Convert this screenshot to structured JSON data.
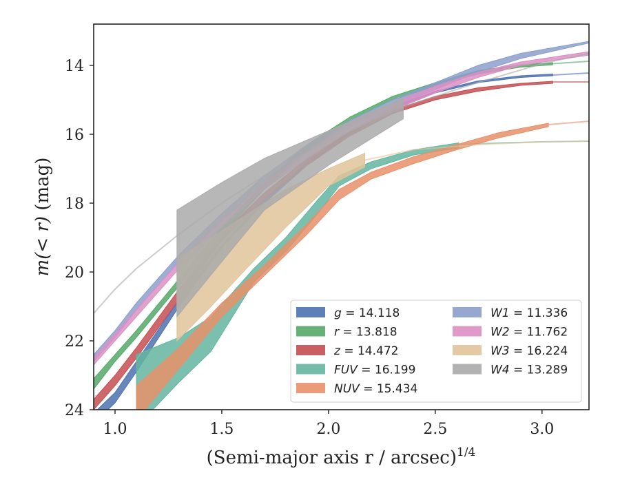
{
  "chart_data": {
    "type": "line",
    "xlabel": "(Semi-major axis r / arcsec)",
    "xlabel_sup": "1/4",
    "ylabel_main": "m(< r)",
    "ylabel_unit": "(mag)",
    "xlim": [
      0.9,
      3.22
    ],
    "ylim": [
      24,
      12.8
    ],
    "y_inverted": true,
    "grid": false,
    "legend_placement": "lower-right",
    "xticks": [
      1.0,
      1.5,
      2.0,
      2.5,
      3.0
    ],
    "xtick_labels": [
      "1.0",
      "1.5",
      "2.0",
      "2.5",
      "3.0"
    ],
    "yticks": [
      14,
      16,
      18,
      20,
      22,
      24
    ],
    "ytick_labels": [
      "14",
      "16",
      "18",
      "20",
      "22",
      "24"
    ],
    "series": [
      {
        "name": "g = 14.118",
        "sym": "g",
        "value": "14.118",
        "color": "#4c72b0",
        "x": [
          0.9,
          1.0,
          1.1,
          1.3,
          1.5,
          1.7,
          1.9,
          2.1,
          2.3,
          2.5,
          2.7,
          2.9,
          3.05
        ],
        "y_lo": [
          24.4,
          23.8,
          22.9,
          21.0,
          19.3,
          18.0,
          16.9,
          16.0,
          15.3,
          14.8,
          14.5,
          14.35,
          14.3
        ],
        "y_hi": [
          24.1,
          23.5,
          22.6,
          20.8,
          19.2,
          17.9,
          16.8,
          15.9,
          15.2,
          14.75,
          14.45,
          14.3,
          14.25
        ],
        "ext_x": [
          3.05,
          3.22
        ],
        "ext_y": [
          14.28,
          14.22
        ]
      },
      {
        "name": "r = 13.818",
        "sym": "r",
        "value": "13.818",
        "color": "#55a868",
        "x": [
          0.9,
          1.0,
          1.1,
          1.3,
          1.5,
          1.7,
          1.9,
          2.1,
          2.3,
          2.5,
          2.7,
          2.9,
          3.05
        ],
        "y_lo": [
          23.4,
          22.6,
          21.9,
          20.4,
          18.9,
          17.6,
          16.5,
          15.6,
          15.0,
          14.6,
          14.25,
          14.05,
          13.98
        ],
        "y_hi": [
          23.1,
          22.4,
          21.7,
          20.2,
          18.7,
          17.4,
          16.3,
          15.5,
          14.9,
          14.5,
          14.15,
          13.98,
          13.92
        ],
        "ext_x": [
          3.05,
          3.22
        ],
        "ext_y": [
          13.95,
          13.88
        ]
      },
      {
        "name": "z = 14.472",
        "sym": "z",
        "value": "14.472",
        "color": "#c44e52",
        "x": [
          0.9,
          1.0,
          1.1,
          1.3,
          1.5,
          1.7,
          1.9,
          2.1,
          2.3,
          2.5,
          2.7,
          2.9,
          3.05
        ],
        "y_lo": [
          24.0,
          23.3,
          22.5,
          20.8,
          19.1,
          17.9,
          16.9,
          16.05,
          15.4,
          15.0,
          14.75,
          14.58,
          14.52
        ],
        "y_hi": [
          23.7,
          23.0,
          22.2,
          20.5,
          18.9,
          17.7,
          16.7,
          15.9,
          15.3,
          14.9,
          14.65,
          14.52,
          14.46
        ],
        "ext_x": [
          3.05,
          3.22
        ],
        "ext_y": [
          14.48,
          14.48
        ]
      },
      {
        "name": "FUV = 16.199",
        "sym": "FUV",
        "value": "16.199",
        "color": "#64b5a0",
        "x": [
          1.1,
          1.3,
          1.45,
          1.55,
          1.65,
          1.8,
          1.95,
          2.05,
          2.2,
          2.4,
          2.61
        ],
        "y_lo": [
          24.5,
          23.2,
          22.3,
          21.3,
          20.3,
          19.4,
          18.3,
          17.5,
          17.0,
          16.6,
          16.4
        ],
        "y_hi": [
          22.4,
          21.9,
          21.3,
          20.6,
          19.9,
          19.0,
          17.9,
          17.2,
          16.8,
          16.45,
          16.25
        ],
        "ext_x": [
          2.61,
          2.8,
          3.0,
          3.22
        ],
        "ext_y": [
          16.3,
          16.25,
          16.22,
          16.2
        ]
      },
      {
        "name": "NUV = 15.434",
        "sym": "NUV",
        "value": "15.434",
        "color": "#e8906a",
        "x": [
          1.1,
          1.3,
          1.5,
          1.7,
          1.9,
          2.05,
          2.2,
          2.4,
          2.6,
          2.8,
          3.03
        ],
        "y_lo": [
          24.3,
          22.8,
          21.3,
          20.1,
          18.9,
          17.9,
          17.3,
          16.85,
          16.45,
          16.1,
          15.78
        ],
        "y_hi": [
          23.3,
          22.2,
          20.9,
          19.8,
          18.6,
          17.6,
          17.1,
          16.65,
          16.3,
          15.95,
          15.68
        ],
        "ext_x": [
          3.03,
          3.22
        ],
        "ext_y": [
          15.72,
          15.62
        ]
      },
      {
        "name": "W1 = 11.336",
        "sym": "W1",
        "value": "11.336",
        "color": "#8c9fcb",
        "x": [
          0.9,
          1.0,
          1.1,
          1.3,
          1.5,
          1.7,
          1.9,
          2.1,
          2.3,
          2.5,
          2.7,
          2.9,
          3.22
        ],
        "y_lo": [
          22.6,
          21.9,
          21.1,
          19.7,
          18.5,
          17.4,
          16.5,
          15.8,
          15.2,
          14.7,
          14.2,
          13.8,
          13.35
        ],
        "y_hi": [
          22.4,
          21.7,
          20.9,
          19.5,
          18.3,
          17.2,
          16.3,
          15.6,
          15.0,
          14.5,
          14.0,
          13.65,
          13.3
        ],
        "ext_x": [],
        "ext_y": []
      },
      {
        "name": "W2 = 11.762",
        "sym": "W2",
        "value": "11.762",
        "color": "#dd8fc4",
        "x": [
          0.9,
          1.0,
          1.1,
          1.3,
          1.5,
          1.7,
          1.9,
          2.1,
          2.3,
          2.5,
          2.7,
          2.9,
          3.22
        ],
        "y_lo": [
          22.7,
          22.0,
          21.3,
          19.9,
          18.7,
          17.6,
          16.7,
          15.9,
          15.3,
          14.8,
          14.35,
          14.0,
          13.7
        ],
        "y_hi": [
          22.5,
          21.8,
          21.1,
          19.7,
          18.5,
          17.4,
          16.5,
          15.7,
          15.1,
          14.6,
          14.2,
          13.9,
          13.6
        ],
        "ext_x": [],
        "ext_y": []
      },
      {
        "name": "W3 = 16.224",
        "sym": "W3",
        "value": "16.224",
        "color": "#e0c49a",
        "x": [
          1.29,
          1.45,
          1.6,
          1.8,
          2.0,
          2.17
        ],
        "y_lo": [
          22.0,
          21.0,
          20.0,
          18.7,
          17.5,
          16.95
        ],
        "y_hi": [
          19.6,
          19.0,
          18.4,
          17.6,
          17.0,
          16.55
        ],
        "ext_x": [
          2.17,
          2.4,
          2.7,
          3.0,
          3.22
        ],
        "ext_y": [
          16.75,
          16.45,
          16.3,
          16.22,
          16.2
        ]
      },
      {
        "name": "W4 = 13.289",
        "sym": "W4",
        "value": "13.289",
        "color": "#aaaaaa",
        "x": [
          1.29,
          1.5,
          1.7,
          2.0,
          2.35
        ],
        "y_lo": [
          21.3,
          19.7,
          18.2,
          16.9,
          15.55
        ],
        "y_hi": [
          18.2,
          17.4,
          16.7,
          15.9,
          14.95
        ],
        "ext_x": [
          0.9,
          1.0,
          1.1,
          1.3,
          1.5,
          1.7,
          2.0,
          2.35,
          2.7,
          3.0,
          3.22
        ],
        "ext_y": [
          21.2,
          20.5,
          19.9,
          18.9,
          18.0,
          17.2,
          16.2,
          15.2,
          14.5,
          13.95,
          13.65
        ]
      }
    ]
  }
}
